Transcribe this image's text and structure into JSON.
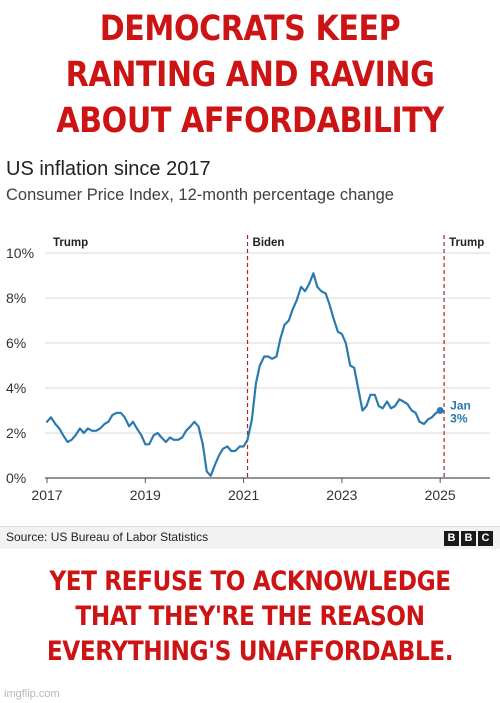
{
  "meme": {
    "top_caption": [
      "DEMOCRATS KEEP",
      "RANTING AND RAVING",
      "ABOUT AFFORDABILITY"
    ],
    "bottom_caption": [
      "YET REFUSE TO ACKNOWLEDGE",
      "THAT THEY'RE THE REASON",
      "EVERYTHING'S UNAFFORDABLE."
    ],
    "watermark": "imgflip.com",
    "caption_color": "#cc1414"
  },
  "chart_data": {
    "type": "line",
    "title": "US inflation since 2017",
    "subtitle": "Consumer Price Index, 12-month percentage change",
    "xlabel": "",
    "ylabel": "",
    "xlim": [
      2017,
      2025.2
    ],
    "ylim": [
      0,
      10
    ],
    "x_ticks": [
      2017,
      2019,
      2021,
      2023,
      2025
    ],
    "x_tick_labels": [
      "2017",
      "2019",
      "2021",
      "2023",
      "2025"
    ],
    "y_ticks": [
      0,
      2,
      4,
      6,
      8,
      10
    ],
    "y_tick_labels": [
      "0%",
      "2%",
      "4%",
      "6%",
      "8%",
      "10%"
    ],
    "grid": "horizontal",
    "line_color": "#2a7ab0",
    "divider_color": "#b22222",
    "periods": [
      {
        "label": "Trump",
        "start": 2017
      },
      {
        "label": "Biden",
        "start": 2021.08
      },
      {
        "label": "Trump",
        "start": 2025.08
      }
    ],
    "end_annotation": {
      "lines": [
        "Jan",
        "3%"
      ],
      "x": 2025.0,
      "y": 3.0
    },
    "series": [
      {
        "name": "CPI 12-month change",
        "points": [
          [
            2017.0,
            2.5
          ],
          [
            2017.08,
            2.7
          ],
          [
            2017.17,
            2.4
          ],
          [
            2017.25,
            2.2
          ],
          [
            2017.33,
            1.9
          ],
          [
            2017.42,
            1.6
          ],
          [
            2017.5,
            1.7
          ],
          [
            2017.58,
            1.9
          ],
          [
            2017.67,
            2.2
          ],
          [
            2017.75,
            2.0
          ],
          [
            2017.83,
            2.2
          ],
          [
            2017.92,
            2.1
          ],
          [
            2018.0,
            2.1
          ],
          [
            2018.08,
            2.2
          ],
          [
            2018.17,
            2.4
          ],
          [
            2018.25,
            2.5
          ],
          [
            2018.33,
            2.8
          ],
          [
            2018.42,
            2.9
          ],
          [
            2018.5,
            2.9
          ],
          [
            2018.58,
            2.7
          ],
          [
            2018.67,
            2.3
          ],
          [
            2018.75,
            2.5
          ],
          [
            2018.83,
            2.2
          ],
          [
            2018.92,
            1.9
          ],
          [
            2019.0,
            1.5
          ],
          [
            2019.08,
            1.5
          ],
          [
            2019.17,
            1.9
          ],
          [
            2019.25,
            2.0
          ],
          [
            2019.33,
            1.8
          ],
          [
            2019.42,
            1.6
          ],
          [
            2019.5,
            1.8
          ],
          [
            2019.58,
            1.7
          ],
          [
            2019.67,
            1.7
          ],
          [
            2019.75,
            1.8
          ],
          [
            2019.83,
            2.1
          ],
          [
            2019.92,
            2.3
          ],
          [
            2020.0,
            2.5
          ],
          [
            2020.08,
            2.3
          ],
          [
            2020.17,
            1.5
          ],
          [
            2020.25,
            0.3
          ],
          [
            2020.33,
            0.1
          ],
          [
            2020.42,
            0.6
          ],
          [
            2020.5,
            1.0
          ],
          [
            2020.58,
            1.3
          ],
          [
            2020.67,
            1.4
          ],
          [
            2020.75,
            1.2
          ],
          [
            2020.83,
            1.2
          ],
          [
            2020.92,
            1.4
          ],
          [
            2021.0,
            1.4
          ],
          [
            2021.08,
            1.7
          ],
          [
            2021.17,
            2.6
          ],
          [
            2021.25,
            4.2
          ],
          [
            2021.33,
            5.0
          ],
          [
            2021.42,
            5.4
          ],
          [
            2021.5,
            5.4
          ],
          [
            2021.58,
            5.3
          ],
          [
            2021.67,
            5.4
          ],
          [
            2021.75,
            6.2
          ],
          [
            2021.83,
            6.8
          ],
          [
            2021.92,
            7.0
          ],
          [
            2022.0,
            7.5
          ],
          [
            2022.08,
            7.9
          ],
          [
            2022.17,
            8.5
          ],
          [
            2022.25,
            8.3
          ],
          [
            2022.33,
            8.6
          ],
          [
            2022.42,
            9.1
          ],
          [
            2022.5,
            8.5
          ],
          [
            2022.58,
            8.3
          ],
          [
            2022.67,
            8.2
          ],
          [
            2022.75,
            7.7
          ],
          [
            2022.83,
            7.1
          ],
          [
            2022.92,
            6.5
          ],
          [
            2023.0,
            6.4
          ],
          [
            2023.08,
            6.0
          ],
          [
            2023.17,
            5.0
          ],
          [
            2023.25,
            4.9
          ],
          [
            2023.33,
            4.0
          ],
          [
            2023.42,
            3.0
          ],
          [
            2023.5,
            3.2
          ],
          [
            2023.58,
            3.7
          ],
          [
            2023.67,
            3.7
          ],
          [
            2023.75,
            3.2
          ],
          [
            2023.83,
            3.1
          ],
          [
            2023.92,
            3.4
          ],
          [
            2024.0,
            3.1
          ],
          [
            2024.08,
            3.2
          ],
          [
            2024.17,
            3.5
          ],
          [
            2024.25,
            3.4
          ],
          [
            2024.33,
            3.3
          ],
          [
            2024.42,
            3.0
          ],
          [
            2024.5,
            2.9
          ],
          [
            2024.58,
            2.5
          ],
          [
            2024.67,
            2.4
          ],
          [
            2024.75,
            2.6
          ],
          [
            2024.83,
            2.7
          ],
          [
            2024.92,
            2.9
          ],
          [
            2025.0,
            3.0
          ]
        ]
      }
    ],
    "source": "Source: US Bureau of Labor Statistics",
    "logo_letters": [
      "B",
      "B",
      "C"
    ]
  }
}
